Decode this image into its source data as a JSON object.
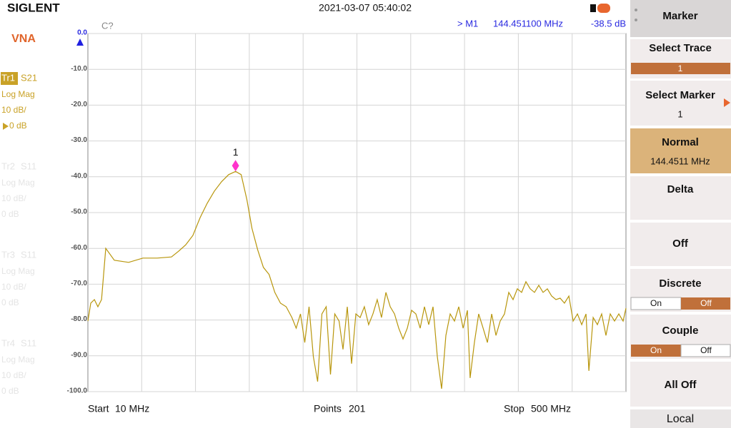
{
  "header": {
    "brand": "SIGLENT",
    "datetime": "2021-03-07 05:40:02"
  },
  "mode": "VNA",
  "traces": [
    {
      "id": "Tr1",
      "param": "S21",
      "format": "Log Mag",
      "scale": "10 dB/",
      "ref": "0 dB"
    },
    {
      "id": "Tr2",
      "param": "S11",
      "format": "Log Mag",
      "scale": "10 dB/",
      "ref": "0 dB"
    },
    {
      "id": "Tr3",
      "param": "S11",
      "format": "Log Mag",
      "scale": "10 dB/",
      "ref": "0 dB"
    },
    {
      "id": "Tr4",
      "param": "S11",
      "format": "Log Mag",
      "scale": "10 dB/",
      "ref": "0 dB"
    }
  ],
  "readout": {
    "status": "C?",
    "marker": "> M1",
    "frequency": "144.451100 MHz",
    "level": "-38.5 dB"
  },
  "footer": {
    "start_label": "Start",
    "start": "10 MHz",
    "points_label": "Points",
    "points": "201",
    "stop_label": "Stop",
    "stop": "500 MHz"
  },
  "menu": {
    "title": "Marker",
    "select_trace": "Select Trace",
    "select_trace_value": "1",
    "select_marker": "Select Marker",
    "select_marker_value": "1",
    "normal": "Normal",
    "normal_value": "144.4511 MHz",
    "delta": "Delta",
    "off": "Off",
    "discrete": "Discrete",
    "discrete_on": "On",
    "discrete_off": "Off",
    "couple": "Couple",
    "couple_on": "On",
    "couple_off": "Off",
    "all_off": "All Off",
    "local": "Local"
  },
  "chart_data": {
    "type": "line",
    "color": "#b8960c",
    "xlim": [
      10,
      500
    ],
    "ylim": [
      -100,
      0
    ],
    "yticks": [
      {
        "value": 0,
        "label": "0.0"
      },
      {
        "value": -10,
        "label": "-10.0"
      },
      {
        "value": -20,
        "label": "-20.0"
      },
      {
        "value": -30,
        "label": "-30.0"
      },
      {
        "value": -40,
        "label": "-40.0"
      },
      {
        "value": -50,
        "label": "-50.0"
      },
      {
        "value": -60,
        "label": "-60.0"
      },
      {
        "value": -70,
        "label": "-70.0"
      },
      {
        "value": -80,
        "label": "-80.0"
      },
      {
        "value": -90,
        "label": "-90.0"
      },
      {
        "value": -100,
        "label": "-100.0"
      }
    ],
    "grid": true,
    "x": [
      10,
      12.6,
      15.9,
      19.1,
      22.4,
      26.3,
      34.1,
      47.1,
      60.1,
      73.1,
      86.1,
      92.6,
      99.1,
      105.6,
      112.2,
      118.7,
      125.2,
      131.7,
      138.2,
      144.5,
      149.6,
      154.8,
      159.4,
      164.6,
      169.8,
      175,
      180.2,
      185.4,
      190.6,
      195.8,
      199.7,
      203.6,
      207.5,
      211.4,
      215.3,
      219.2,
      223.1,
      227,
      230.9,
      234.8,
      238.7,
      242.3,
      246.2,
      250.1,
      254,
      257.9,
      261.8,
      265.7,
      269.6,
      273.5,
      277.4,
      281.4,
      285.3,
      289.2,
      293.1,
      297,
      300.9,
      304.8,
      308.7,
      312.6,
      316.5,
      320.4,
      324.3,
      328.2,
      332.1,
      336,
      339.9,
      343.8,
      347.7,
      351.7,
      355.6,
      358.1,
      362,
      365.9,
      369.9,
      373.8,
      377.7,
      381.6,
      385.5,
      389.4,
      393.3,
      397.2,
      401.1,
      405,
      408.9,
      412.8,
      416.7,
      420.6,
      424.5,
      428.4,
      432.3,
      436.2,
      440.1,
      444,
      448,
      451.9,
      455.8,
      459.7,
      463.6,
      466.2,
      470.1,
      474,
      477.9,
      481.8,
      485.7,
      489.6,
      493.5,
      497.4,
      500
    ],
    "values": [
      -80.3,
      -75.3,
      -74.3,
      -76.3,
      -74.3,
      -60.0,
      -63.3,
      -63.9,
      -62.7,
      -62.7,
      -62.4,
      -60.8,
      -59.0,
      -56.4,
      -51.4,
      -47.4,
      -44.0,
      -41.4,
      -39.4,
      -38.5,
      -39.4,
      -46.4,
      -54.4,
      -60.4,
      -65.3,
      -67.3,
      -72.3,
      -75.3,
      -76.3,
      -79.3,
      -82.3,
      -78.3,
      -86.3,
      -76.3,
      -90.2,
      -97.2,
      -78.3,
      -76.3,
      -95.2,
      -78.3,
      -80.3,
      -88.2,
      -76.3,
      -92.2,
      -78.3,
      -79.3,
      -76.3,
      -81.3,
      -78.3,
      -74.3,
      -79.3,
      -72.3,
      -76.3,
      -78.3,
      -82.3,
      -85.3,
      -82.3,
      -77.3,
      -78.3,
      -82.3,
      -76.3,
      -81.3,
      -76.3,
      -90.2,
      -99.2,
      -84.3,
      -78.3,
      -80.3,
      -76.3,
      -82.3,
      -77.3,
      -96.2,
      -86.3,
      -78.3,
      -82.3,
      -86.3,
      -78.3,
      -84.3,
      -80.3,
      -78.3,
      -72.3,
      -74.3,
      -71.3,
      -72.3,
      -69.3,
      -71.3,
      -72.3,
      -70.3,
      -72.3,
      -71.3,
      -73.3,
      -74.3,
      -73.9,
      -75.3,
      -73.3,
      -80.3,
      -78.3,
      -81.3,
      -78.3,
      -94.2,
      -79.3,
      -81.3,
      -78.3,
      -84.3,
      -78.3,
      -80.3,
      -78.3,
      -80.3,
      -76.7
    ],
    "markers": [
      {
        "label": "1",
        "x": 144.4511,
        "y": -38.5
      }
    ]
  }
}
